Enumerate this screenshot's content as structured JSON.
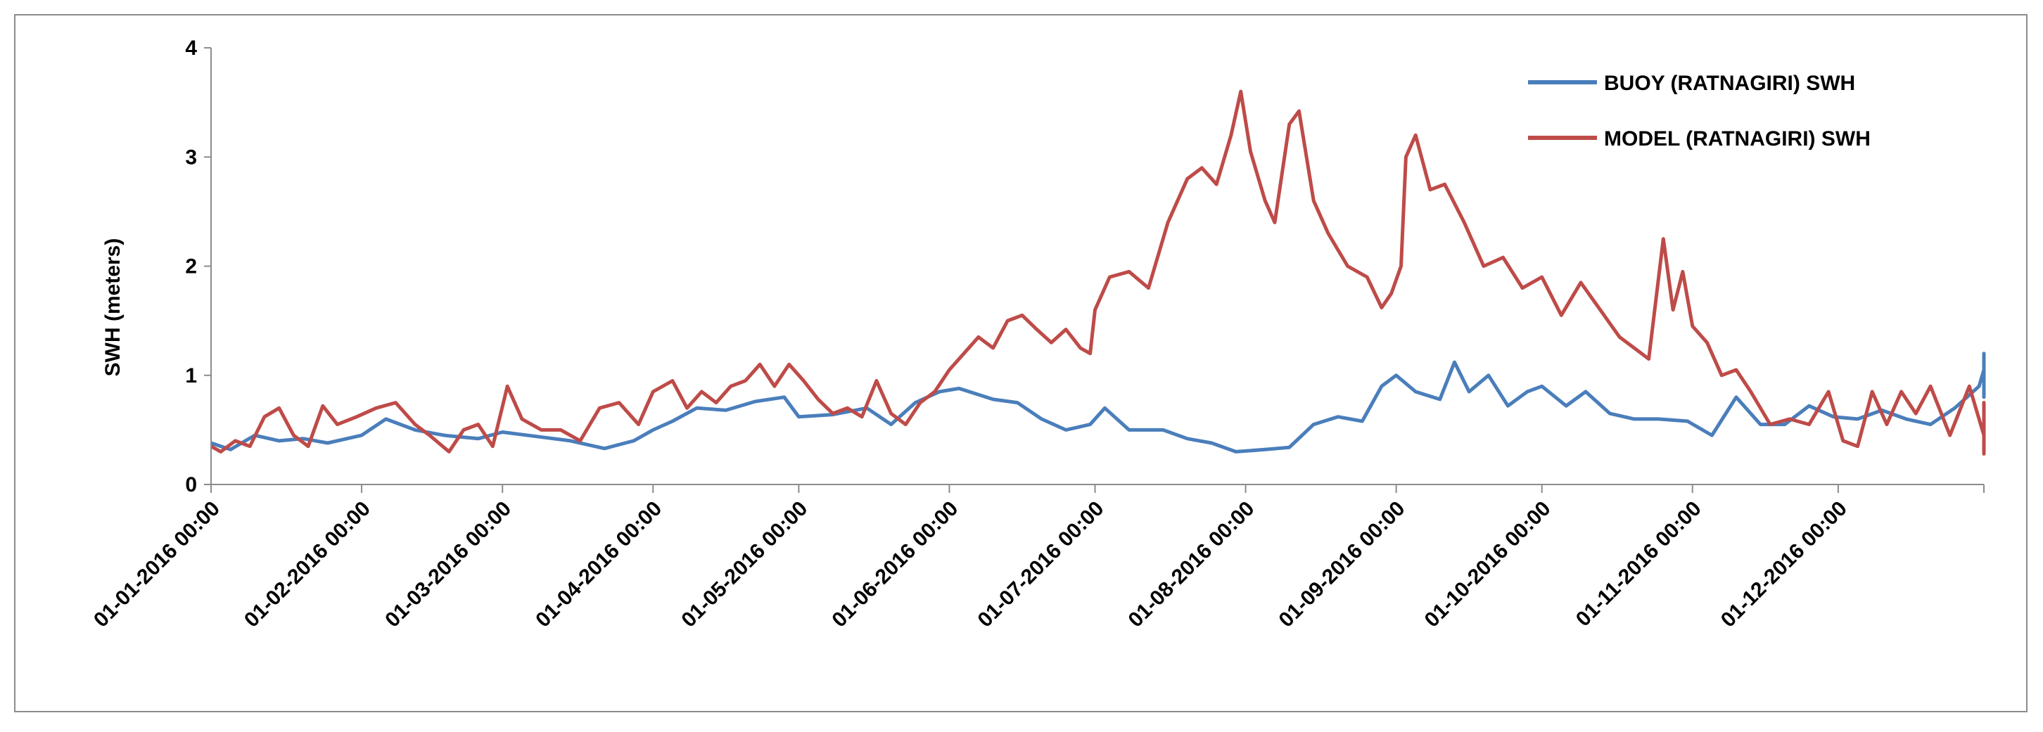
{
  "chart_data": {
    "type": "line",
    "title": "",
    "xlabel": "",
    "ylabel": "SWH (meters)",
    "ylim": [
      0,
      4
    ],
    "yticks": [
      "0",
      "1",
      "2",
      "3",
      "4"
    ],
    "xlim": [
      "01-01-2016 00:00",
      "31-12-2016 00:00"
    ],
    "xticks": [
      "01-01-2016 00:00",
      "01-02-2016 00:00",
      "01-03-2016 00:00",
      "01-04-2016 00:00",
      "01-05-2016 00:00",
      "01-06-2016 00:00",
      "01-07-2016 00:00",
      "01-08-2016 00:00",
      "01-09-2016 00:00",
      "01-10-2016 00:00",
      "01-11-2016 00:00",
      "01-12-2016 00:00"
    ],
    "grid": false,
    "legend_position": "top-right",
    "series": [
      {
        "name": "BUOY (RATNAGIRI) SWH",
        "color": "#4a7ebb",
        "points": [
          [
            "01-01-2016",
            0.38
          ],
          [
            "05-01-2016",
            0.32
          ],
          [
            "10-01-2016",
            0.45
          ],
          [
            "15-01-2016",
            0.4
          ],
          [
            "20-01-2016",
            0.42
          ],
          [
            "25-01-2016",
            0.38
          ],
          [
            "01-02-2016",
            0.45
          ],
          [
            "06-02-2016",
            0.6
          ],
          [
            "12-02-2016",
            0.5
          ],
          [
            "18-02-2016",
            0.45
          ],
          [
            "25-02-2016",
            0.42
          ],
          [
            "01-03-2016",
            0.48
          ],
          [
            "08-03-2016",
            0.44
          ],
          [
            "15-03-2016",
            0.4
          ],
          [
            "22-03-2016",
            0.33
          ],
          [
            "28-03-2016",
            0.4
          ],
          [
            "01-04-2016",
            0.5
          ],
          [
            "05-04-2016",
            0.58
          ],
          [
            "10-04-2016",
            0.7
          ],
          [
            "16-04-2016",
            0.68
          ],
          [
            "22-04-2016",
            0.76
          ],
          [
            "28-04-2016",
            0.8
          ],
          [
            "01-05-2016",
            0.62
          ],
          [
            "08-05-2016",
            0.64
          ],
          [
            "15-05-2016",
            0.7
          ],
          [
            "20-05-2016",
            0.55
          ],
          [
            "25-05-2016",
            0.75
          ],
          [
            "30-05-2016",
            0.85
          ],
          [
            "03-06-2016",
            0.88
          ],
          [
            "10-06-2016",
            0.78
          ],
          [
            "15-06-2016",
            0.75
          ],
          [
            "20-06-2016",
            0.6
          ],
          [
            "25-06-2016",
            0.5
          ],
          [
            "30-06-2016",
            0.55
          ],
          [
            "03-07-2016",
            0.7
          ],
          [
            "08-07-2016",
            0.5
          ],
          [
            "15-07-2016",
            0.5
          ],
          [
            "20-07-2016",
            0.42
          ],
          [
            "25-07-2016",
            0.38
          ],
          [
            "30-07-2016",
            0.3
          ],
          [
            "05-08-2016",
            0.32
          ],
          [
            "10-08-2016",
            0.34
          ],
          [
            "15-08-2016",
            0.55
          ],
          [
            "20-08-2016",
            0.62
          ],
          [
            "25-08-2016",
            0.58
          ],
          [
            "29-08-2016",
            0.9
          ],
          [
            "01-09-2016",
            1.0
          ],
          [
            "05-09-2016",
            0.85
          ],
          [
            "10-09-2016",
            0.78
          ],
          [
            "13-09-2016",
            1.12
          ],
          [
            "16-09-2016",
            0.85
          ],
          [
            "20-09-2016",
            1.0
          ],
          [
            "24-09-2016",
            0.72
          ],
          [
            "28-09-2016",
            0.85
          ],
          [
            "01-10-2016",
            0.9
          ],
          [
            "06-10-2016",
            0.72
          ],
          [
            "10-10-2016",
            0.85
          ],
          [
            "15-10-2016",
            0.65
          ],
          [
            "20-10-2016",
            0.6
          ],
          [
            "25-10-2016",
            0.6
          ],
          [
            "31-10-2016",
            0.58
          ],
          [
            "05-11-2016",
            0.45
          ],
          [
            "10-11-2016",
            0.8
          ],
          [
            "15-11-2016",
            0.55
          ],
          [
            "20-11-2016",
            0.55
          ],
          [
            "25-11-2016",
            0.72
          ],
          [
            "30-11-2016",
            0.62
          ],
          [
            "05-12-2016",
            0.6
          ],
          [
            "10-12-2016",
            0.68
          ],
          [
            "15-12-2016",
            0.6
          ],
          [
            "20-12-2016",
            0.55
          ],
          [
            "25-12-2016",
            0.7
          ],
          [
            "30-12-2016",
            0.9
          ],
          [
            "05-01-2017",
            1.05
          ],
          [
            "10-01-2017",
            1.2
          ],
          [
            "14-01-2017",
            1.0
          ],
          [
            "18-01-2017",
            0.82
          ],
          [
            "22-01-2017",
            0.8
          ],
          [
            "25-01-2017",
            0.9
          ]
        ]
      },
      {
        "name": "MODEL (RATNAGIRI) SWH",
        "color": "#be4b48",
        "points": [
          [
            "01-01-2016",
            0.35
          ],
          [
            "03-01-2016",
            0.3
          ],
          [
            "06-01-2016",
            0.4
          ],
          [
            "09-01-2016",
            0.35
          ],
          [
            "12-01-2016",
            0.62
          ],
          [
            "15-01-2016",
            0.7
          ],
          [
            "18-01-2016",
            0.45
          ],
          [
            "21-01-2016",
            0.35
          ],
          [
            "24-01-2016",
            0.72
          ],
          [
            "27-01-2016",
            0.55
          ],
          [
            "31-01-2016",
            0.62
          ],
          [
            "04-02-2016",
            0.7
          ],
          [
            "08-02-2016",
            0.75
          ],
          [
            "12-02-2016",
            0.55
          ],
          [
            "15-02-2016",
            0.45
          ],
          [
            "19-02-2016",
            0.3
          ],
          [
            "22-02-2016",
            0.5
          ],
          [
            "25-02-2016",
            0.55
          ],
          [
            "28-02-2016",
            0.35
          ],
          [
            "02-03-2016",
            0.9
          ],
          [
            "05-03-2016",
            0.6
          ],
          [
            "09-03-2016",
            0.5
          ],
          [
            "13-03-2016",
            0.5
          ],
          [
            "17-03-2016",
            0.4
          ],
          [
            "21-03-2016",
            0.7
          ],
          [
            "25-03-2016",
            0.75
          ],
          [
            "29-03-2016",
            0.55
          ],
          [
            "01-04-2016",
            0.85
          ],
          [
            "05-04-2016",
            0.95
          ],
          [
            "08-04-2016",
            0.7
          ],
          [
            "11-04-2016",
            0.85
          ],
          [
            "14-04-2016",
            0.75
          ],
          [
            "17-04-2016",
            0.9
          ],
          [
            "20-04-2016",
            0.95
          ],
          [
            "23-04-2016",
            1.1
          ],
          [
            "26-04-2016",
            0.9
          ],
          [
            "29-04-2016",
            1.1
          ],
          [
            "02-05-2016",
            0.95
          ],
          [
            "05-05-2016",
            0.78
          ],
          [
            "08-05-2016",
            0.65
          ],
          [
            "11-05-2016",
            0.7
          ],
          [
            "14-05-2016",
            0.62
          ],
          [
            "17-05-2016",
            0.95
          ],
          [
            "20-05-2016",
            0.65
          ],
          [
            "23-05-2016",
            0.55
          ],
          [
            "26-05-2016",
            0.75
          ],
          [
            "29-05-2016",
            0.85
          ],
          [
            "01-06-2016",
            1.05
          ],
          [
            "04-06-2016",
            1.2
          ],
          [
            "07-06-2016",
            1.35
          ],
          [
            "10-06-2016",
            1.25
          ],
          [
            "13-06-2016",
            1.5
          ],
          [
            "16-06-2016",
            1.55
          ],
          [
            "19-06-2016",
            1.42
          ],
          [
            "22-06-2016",
            1.3
          ],
          [
            "25-06-2016",
            1.42
          ],
          [
            "28-06-2016",
            1.25
          ],
          [
            "30-06-2016",
            1.2
          ],
          [
            "01-07-2016",
            1.6
          ],
          [
            "04-07-2016",
            1.9
          ],
          [
            "08-07-2016",
            1.95
          ],
          [
            "12-07-2016",
            1.8
          ],
          [
            "16-07-2016",
            2.4
          ],
          [
            "20-07-2016",
            2.8
          ],
          [
            "23-07-2016",
            2.9
          ],
          [
            "26-07-2016",
            2.75
          ],
          [
            "29-07-2016",
            3.2
          ],
          [
            "31-07-2016",
            3.6
          ],
          [
            "02-08-2016",
            3.05
          ],
          [
            "05-08-2016",
            2.6
          ],
          [
            "07-08-2016",
            2.4
          ],
          [
            "10-08-2016",
            3.3
          ],
          [
            "12-08-2016",
            3.42
          ],
          [
            "15-08-2016",
            2.6
          ],
          [
            "18-08-2016",
            2.3
          ],
          [
            "22-08-2016",
            2.0
          ],
          [
            "26-08-2016",
            1.9
          ],
          [
            "29-08-2016",
            1.62
          ],
          [
            "31-08-2016",
            1.75
          ],
          [
            "02-09-2016",
            2.0
          ],
          [
            "03-09-2016",
            3.0
          ],
          [
            "05-09-2016",
            3.2
          ],
          [
            "08-09-2016",
            2.7
          ],
          [
            "11-09-2016",
            2.75
          ],
          [
            "15-09-2016",
            2.4
          ],
          [
            "19-09-2016",
            2.0
          ],
          [
            "23-09-2016",
            2.08
          ],
          [
            "27-09-2016",
            1.8
          ],
          [
            "01-10-2016",
            1.9
          ],
          [
            "05-10-2016",
            1.55
          ],
          [
            "09-10-2016",
            1.85
          ],
          [
            "13-10-2016",
            1.6
          ],
          [
            "17-10-2016",
            1.35
          ],
          [
            "20-10-2016",
            1.25
          ],
          [
            "23-10-2016",
            1.15
          ],
          [
            "26-10-2016",
            2.25
          ],
          [
            "28-10-2016",
            1.6
          ],
          [
            "30-10-2016",
            1.95
          ],
          [
            "01-11-2016",
            1.45
          ],
          [
            "04-11-2016",
            1.3
          ],
          [
            "07-11-2016",
            1.0
          ],
          [
            "10-11-2016",
            1.05
          ],
          [
            "13-11-2016",
            0.85
          ],
          [
            "17-11-2016",
            0.55
          ],
          [
            "21-11-2016",
            0.6
          ],
          [
            "25-11-2016",
            0.55
          ],
          [
            "29-11-2016",
            0.85
          ],
          [
            "02-12-2016",
            0.4
          ],
          [
            "05-12-2016",
            0.35
          ],
          [
            "08-12-2016",
            0.85
          ],
          [
            "11-12-2016",
            0.55
          ],
          [
            "14-12-2016",
            0.85
          ],
          [
            "17-12-2016",
            0.65
          ],
          [
            "20-12-2016",
            0.9
          ],
          [
            "24-12-2016",
            0.45
          ],
          [
            "28-12-2016",
            0.9
          ],
          [
            "31-12-2016",
            0.45
          ],
          [
            "04-01-2017",
            0.28
          ],
          [
            "08-01-2017",
            0.75
          ],
          [
            "12-01-2017",
            0.5
          ],
          [
            "16-01-2017",
            0.45
          ],
          [
            "20-01-2017",
            0.6
          ],
          [
            "23-01-2017",
            0.28
          ],
          [
            "25-01-2017",
            0.3
          ]
        ]
      }
    ]
  }
}
